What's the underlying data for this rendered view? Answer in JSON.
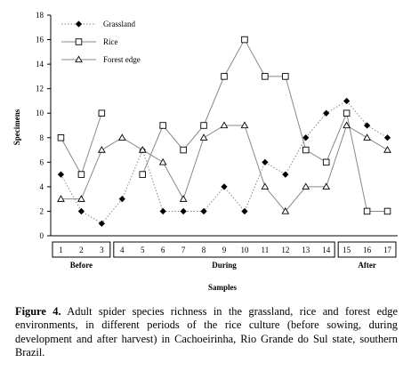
{
  "chart_data": {
    "type": "line",
    "x": [
      1,
      2,
      3,
      4,
      5,
      6,
      7,
      8,
      9,
      10,
      11,
      12,
      13,
      14,
      15,
      16,
      17
    ],
    "x_tick_labels": [
      "1",
      "2",
      "3",
      "4",
      "5",
      "6",
      "7",
      "8",
      "9",
      "10",
      "11",
      "12",
      "13",
      "14",
      "15",
      "16",
      "17"
    ],
    "segments": [
      {
        "label": "Before",
        "from": 1,
        "to": 3
      },
      {
        "label": "During",
        "from": 4,
        "to": 14
      },
      {
        "label": "After",
        "from": 15,
        "to": 17
      }
    ],
    "series": [
      {
        "name": "Grassland",
        "marker": "filled-diamond",
        "line": "dotted",
        "values": [
          5,
          2,
          1,
          3,
          7,
          2,
          2,
          2,
          4,
          2,
          6,
          5,
          8,
          10,
          11,
          9,
          8
        ]
      },
      {
        "name": "Rice",
        "marker": "open-square",
        "line": "solid",
        "values": [
          8,
          5,
          10,
          null,
          5,
          9,
          7,
          9,
          13,
          16,
          13,
          13,
          7,
          6,
          10,
          2,
          2
        ]
      },
      {
        "name": "Forest edge",
        "marker": "open-triangle",
        "line": "solid",
        "values": [
          3,
          3,
          7,
          8,
          7,
          6,
          3,
          8,
          9,
          9,
          4,
          2,
          4,
          4,
          9,
          8,
          7
        ]
      }
    ],
    "ylabel": "Specimens",
    "xlabel": "Samples",
    "ylim": [
      0,
      18
    ],
    "y_ticks": [
      0,
      2,
      4,
      6,
      8,
      10,
      12,
      14,
      16,
      18
    ],
    "legend_position": "top-left",
    "grid": false,
    "line_color": "#888888",
    "marker_color": "#000000"
  },
  "caption": {
    "label": "Figure 4.",
    "text": " Adult spider species richness in the grassland, rice and forest edge environments, in different periods of the rice culture (before sowing, during development and after harvest) in Cachoeirinha, Rio Grande do Sul state, southern Brazil."
  }
}
